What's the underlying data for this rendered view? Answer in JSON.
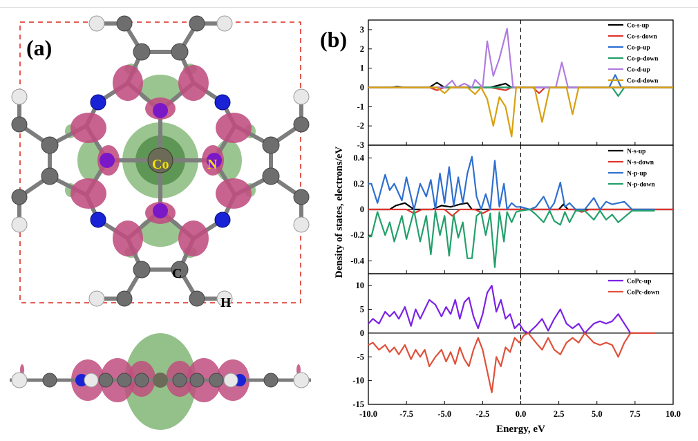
{
  "panel_a": {
    "label": "(a)",
    "atom_labels": {
      "co": "Co",
      "n": "N",
      "c": "C",
      "h": "H"
    }
  },
  "panel_b": {
    "label": "(b)"
  },
  "colors": {
    "isosurface_pink": "#c04d7f",
    "isosurface_green": "#78b26b",
    "atom_co": "#6b6b58",
    "atom_n": "#1a22d6",
    "atom_c": "#6e6e6e",
    "atom_h": "#e8e8e8",
    "atom_purple": "#7a18c8",
    "bond": "#7d7d7d",
    "cell_box": "#e0463c"
  },
  "chart_data": [
    {
      "type": "line",
      "xlim": [
        -10,
        10
      ],
      "ylim": [
        -3,
        3.5
      ],
      "yticks": [
        3,
        2,
        1,
        0,
        -1,
        -2,
        -3
      ],
      "legend_position": "top-right",
      "fermi_level": 0.0,
      "series": [
        {
          "name": "Co-s-up",
          "color": "#000000",
          "direction": "up",
          "x": [
            -10,
            -8.5,
            -8.1,
            -7.7,
            -6,
            -5.5,
            -5.0,
            -2,
            -1.0,
            -0.6,
            0,
            10
          ],
          "y": [
            0,
            0,
            0.04,
            0,
            0,
            0.25,
            0,
            0,
            0.2,
            0,
            0,
            0
          ]
        },
        {
          "name": "Co-s-down",
          "color": "#e1342c",
          "direction": "down",
          "x": [
            -10,
            -6,
            -5.5,
            -5.0,
            -2,
            -1.0,
            -0.6,
            0.8,
            1.2,
            1.6,
            10
          ],
          "y": [
            0,
            0,
            -0.15,
            0,
            0,
            -0.15,
            0,
            0,
            -0.3,
            0,
            0
          ]
        },
        {
          "name": "Co-p-up",
          "color": "#2f6fd0",
          "direction": "up",
          "x": [
            -10,
            5.8,
            6.2,
            6.6,
            10
          ],
          "y": [
            0,
            0,
            0.65,
            0,
            0
          ]
        },
        {
          "name": "Co-p-down",
          "color": "#22a06a",
          "direction": "down",
          "x": [
            -10,
            6.0,
            6.4,
            6.8,
            10
          ],
          "y": [
            0,
            0,
            -0.45,
            0,
            0
          ]
        },
        {
          "name": "Co-d-up",
          "color": "#b07ce0",
          "direction": "up",
          "x": [
            -10,
            -5.0,
            -4.5,
            -4.2,
            -3.7,
            -3.2,
            -3.0,
            -2.5,
            -2.2,
            -1.8,
            -1.4,
            -0.9,
            -0.5,
            0,
            2.3,
            2.7,
            3.1,
            10
          ],
          "y": [
            0,
            0,
            0.35,
            0,
            0.2,
            0,
            0.4,
            0,
            2.4,
            0.6,
            1.5,
            3.05,
            0,
            0,
            0,
            1.3,
            0,
            0
          ]
        },
        {
          "name": "Co-d-down",
          "color": "#d8a010",
          "direction": "down",
          "x": [
            -10,
            -5.5,
            -5.0,
            -4.6,
            -3.5,
            -3.0,
            -2.6,
            -2.2,
            -1.8,
            -1.4,
            -1.0,
            -0.6,
            -0.3,
            0,
            0.9,
            1.4,
            1.9,
            3.0,
            3.4,
            3.8,
            10
          ],
          "y": [
            0,
            0,
            -0.3,
            0,
            0,
            -0.35,
            0,
            -0.6,
            -2.0,
            -0.5,
            -1.0,
            -2.55,
            0,
            0,
            0,
            -1.8,
            0,
            0,
            -1.4,
            0,
            0
          ]
        }
      ]
    },
    {
      "type": "line",
      "xlim": [
        -10,
        10
      ],
      "ylim": [
        -0.5,
        0.5
      ],
      "yticks": [
        0.4,
        0.2,
        0.0,
        -0.2,
        -0.4
      ],
      "legend_position": "top-right",
      "fermi_level": 0.0,
      "ylabel": "Density of states, electrons/eV",
      "series": [
        {
          "name": "N-s-up",
          "color": "#000000",
          "direction": "up",
          "x": [
            -10,
            -8.6,
            -8.2,
            -7.6,
            -7.0,
            -5.8,
            -5.2,
            -4.6,
            -4.0,
            -3.5,
            -3.2,
            2.5,
            2.8,
            3.1,
            10
          ],
          "y": [
            0,
            0,
            0.03,
            0.05,
            0,
            0,
            0.03,
            0.02,
            0.04,
            0.05,
            0,
            0,
            0.04,
            0,
            0
          ]
        },
        {
          "name": "N-s-down",
          "color": "#e1342c",
          "direction": "down",
          "x": [
            -10,
            -7.5,
            -7.0,
            -6.5,
            -5.0,
            -4.5,
            -4.0,
            -3.0,
            -2.5,
            -2.0,
            3.5,
            4.0,
            4.5,
            10
          ],
          "y": [
            0,
            0,
            -0.03,
            0,
            0,
            -0.05,
            0,
            0,
            -0.03,
            0,
            0,
            -0.02,
            0,
            0
          ]
        },
        {
          "name": "N-p-up",
          "color": "#2f6fd0",
          "direction": "up",
          "x": [
            -10,
            -9.8,
            -9.4,
            -8.9,
            -8.6,
            -8.3,
            -7.8,
            -7.5,
            -7.0,
            -6.6,
            -6.2,
            -5.9,
            -5.6,
            -5.3,
            -5.0,
            -4.7,
            -4.4,
            -4.1,
            -3.8,
            -3.5,
            -3.2,
            -2.9,
            -2.6,
            -2.3,
            -2.0,
            -1.7,
            -1.4,
            -1.1,
            -0.9,
            -0.6,
            -0.3,
            0.0,
            0.6,
            1.0,
            1.5,
            1.9,
            2.2,
            2.6,
            2.9,
            3.2,
            3.6,
            4.2,
            4.8,
            5.2,
            5.6,
            6.0,
            6.4,
            6.8,
            7.3,
            8.8
          ],
          "y": [
            0.2,
            0.2,
            0.05,
            0.27,
            0.15,
            0.2,
            0.07,
            0.25,
            0.0,
            0.2,
            0.1,
            0.23,
            0.0,
            0.28,
            0.05,
            0.33,
            0.03,
            0.25,
            0.05,
            0.28,
            0.41,
            0.1,
            0.0,
            0.12,
            0.0,
            0.38,
            0.02,
            0.2,
            0.0,
            0.05,
            0.02,
            0.02,
            0.0,
            0.02,
            0.1,
            0.0,
            0.05,
            0.21,
            0.02,
            0.05,
            0.0,
            0.0,
            0.09,
            0.0,
            0.06,
            0.04,
            0.05,
            0.06,
            0.0,
            0.0
          ]
        },
        {
          "name": "N-p-down",
          "color": "#22a06a",
          "direction": "down",
          "x": [
            -10,
            -9.8,
            -9.4,
            -8.9,
            -8.6,
            -8.3,
            -7.8,
            -7.5,
            -7.0,
            -6.6,
            -6.2,
            -5.9,
            -5.6,
            -5.3,
            -5.0,
            -4.7,
            -4.4,
            -4.1,
            -3.8,
            -3.5,
            -3.2,
            -2.9,
            -2.6,
            -2.3,
            -2.0,
            -1.7,
            -1.4,
            -1.1,
            -0.9,
            -0.6,
            -0.3,
            0.0,
            0.6,
            1.0,
            1.5,
            1.9,
            2.2,
            2.6,
            2.9,
            3.2,
            3.6,
            4.2,
            4.8,
            5.2,
            5.6,
            6.0,
            6.4,
            6.8,
            7.3,
            8.8
          ],
          "y": [
            -0.21,
            -0.21,
            -0.02,
            -0.2,
            -0.1,
            -0.25,
            -0.05,
            -0.23,
            -0.01,
            -0.25,
            -0.05,
            -0.35,
            -0.01,
            -0.2,
            -0.05,
            -0.36,
            -0.04,
            -0.22,
            -0.1,
            -0.38,
            -0.38,
            -0.05,
            -0.02,
            -0.2,
            -0.03,
            -0.45,
            -0.02,
            -0.25,
            -0.02,
            -0.1,
            -0.02,
            -0.01,
            0.0,
            -0.04,
            -0.1,
            -0.01,
            -0.09,
            -0.12,
            -0.02,
            -0.1,
            -0.01,
            -0.01,
            -0.08,
            -0.01,
            -0.08,
            -0.04,
            -0.1,
            -0.06,
            -0.01,
            -0.01
          ]
        }
      ]
    },
    {
      "type": "line",
      "xlim": [
        -10,
        10
      ],
      "ylim": [
        -15,
        12.5
      ],
      "yticks": [
        10,
        5,
        0,
        -5,
        -10,
        -15
      ],
      "xticks": [
        "-10.0",
        "-7.5",
        "-5.0",
        "-2.5",
        "0.0",
        "2.5",
        "5.0",
        "7.5",
        "10.0"
      ],
      "legend_position": "top-right",
      "fermi_level": 0.0,
      "xlabel": "Energy, eV",
      "series": [
        {
          "name": "CoPc-up",
          "color": "#7b22e6",
          "direction": "up",
          "x": [
            -10,
            -9.7,
            -9.3,
            -8.9,
            -8.6,
            -8.3,
            -8.0,
            -7.6,
            -7.2,
            -6.9,
            -6.6,
            -6.3,
            -6.0,
            -5.6,
            -5.2,
            -4.9,
            -4.6,
            -4.3,
            -4.0,
            -3.7,
            -3.4,
            -3.1,
            -2.8,
            -2.5,
            -2.2,
            -1.9,
            -1.6,
            -1.3,
            -1.0,
            -0.7,
            -0.4,
            -0.1,
            0.2,
            0.5,
            1.0,
            1.4,
            1.8,
            2.2,
            2.6,
            3.0,
            3.4,
            3.8,
            4.2,
            4.8,
            5.2,
            5.6,
            6.0,
            6.4,
            6.8,
            7.2,
            8.8
          ],
          "y": [
            2.0,
            3.0,
            2.0,
            4.5,
            3.5,
            4.5,
            3.0,
            5.5,
            1.5,
            5.0,
            3.0,
            5.0,
            7.0,
            6.0,
            3.5,
            5.5,
            4.0,
            7.0,
            3.0,
            6.5,
            7.5,
            3.5,
            1.0,
            4.0,
            8.5,
            10.0,
            4.5,
            7.0,
            3.0,
            4.0,
            1.0,
            2.0,
            0.5,
            0.0,
            1.5,
            3.0,
            0.5,
            3.0,
            5.0,
            2.0,
            1.0,
            2.0,
            0.0,
            2.0,
            2.5,
            2.0,
            2.5,
            4.0,
            2.0,
            0.0,
            0.0
          ]
        },
        {
          "name": "CoPc-down",
          "color": "#e0503a",
          "direction": "down",
          "x": [
            -10,
            -9.7,
            -9.3,
            -8.9,
            -8.6,
            -8.3,
            -8.0,
            -7.6,
            -7.2,
            -6.9,
            -6.6,
            -6.3,
            -6.0,
            -5.6,
            -5.2,
            -4.9,
            -4.6,
            -4.3,
            -4.0,
            -3.7,
            -3.4,
            -3.1,
            -2.8,
            -2.5,
            -2.2,
            -1.9,
            -1.6,
            -1.3,
            -1.0,
            -0.7,
            -0.4,
            -0.1,
            0.2,
            0.5,
            1.0,
            1.4,
            1.8,
            2.2,
            2.6,
            3.0,
            3.4,
            3.8,
            4.2,
            4.8,
            5.2,
            5.6,
            6.0,
            6.4,
            6.8,
            7.2,
            8.8
          ],
          "y": [
            -2.5,
            -2.0,
            -3.5,
            -2.5,
            -4.0,
            -3.0,
            -4.5,
            -2.5,
            -5.5,
            -3.5,
            -5.0,
            -3.5,
            -7.0,
            -5.0,
            -3.5,
            -6.0,
            -4.0,
            -6.5,
            -3.0,
            -5.5,
            -7.0,
            -3.5,
            -1.0,
            -3.5,
            -8.0,
            -12.5,
            -5.0,
            -7.0,
            -3.0,
            -4.0,
            -1.0,
            -2.0,
            -0.5,
            0.0,
            -2.0,
            -3.5,
            -1.0,
            -3.5,
            -4.5,
            -2.0,
            -1.0,
            -2.0,
            0.0,
            -2.0,
            -2.5,
            -2.0,
            -2.5,
            -5.0,
            -2.0,
            0.0,
            0.0
          ]
        }
      ]
    }
  ]
}
